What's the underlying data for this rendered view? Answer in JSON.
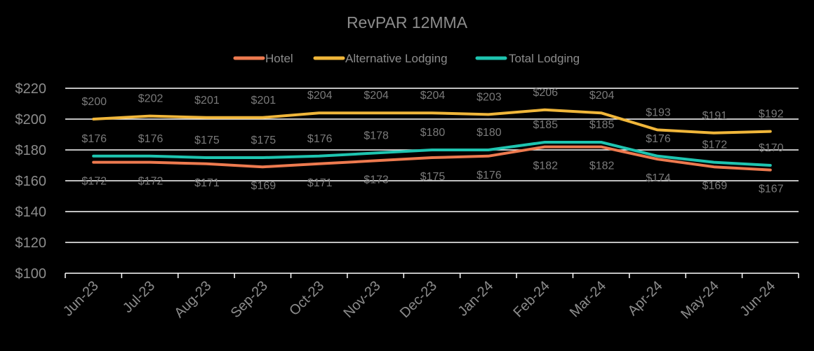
{
  "chart_data": {
    "type": "line",
    "title": "RevPAR 12MMA",
    "xlabel": "",
    "ylabel": "",
    "ylim": [
      100,
      220
    ],
    "ytick_step": 20,
    "ytick_labels": [
      "$100",
      "$120",
      "$140",
      "$160",
      "$180",
      "$200",
      "$220"
    ],
    "grid": true,
    "legend_position": "top-center",
    "categories": [
      "Jun-23",
      "Jul-23",
      "Aug-23",
      "Sep-23",
      "Oct-23",
      "Nov-23",
      "Dec-23",
      "Jan-24",
      "Feb-24",
      "Mar-24",
      "Apr-24",
      "May-24",
      "Jun-24"
    ],
    "series": [
      {
        "name": "Hotel",
        "color": "#ed7a4f",
        "values": [
          172,
          172,
          171,
          169,
          171,
          173,
          175,
          176,
          182,
          182,
          174,
          169,
          167
        ],
        "labels": [
          "$172",
          "$172",
          "$171",
          "$169",
          "$171",
          "$173",
          "$175",
          "$176",
          "$182",
          "$182",
          "$174",
          "$169",
          "$167"
        ]
      },
      {
        "name": "Alternative Lodging",
        "color": "#f0b63a",
        "values": [
          200,
          202,
          201,
          201,
          204,
          204,
          204,
          203,
          206,
          204,
          193,
          191,
          192
        ],
        "labels": [
          "$200",
          "$202",
          "$201",
          "$201",
          "$204",
          "$204",
          "$204",
          "$203",
          "$206",
          "$204",
          "$193",
          "$191",
          "$192"
        ]
      },
      {
        "name": "Total Lodging",
        "color": "#1ec4b0",
        "values": [
          176,
          176,
          175,
          175,
          176,
          178,
          180,
          180,
          185,
          185,
          176,
          172,
          170
        ],
        "labels": [
          "$176",
          "$176",
          "$175",
          "$175",
          "$176",
          "$178",
          "$180",
          "$180",
          "$185",
          "$185",
          "$176",
          "$172",
          "$170"
        ]
      }
    ]
  }
}
